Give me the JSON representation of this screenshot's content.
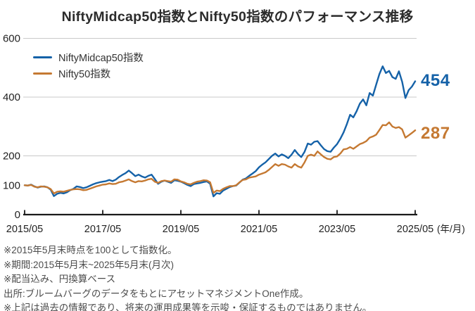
{
  "title": "NiftyMidcap50指数とNifty50指数のパフォーマンス推移",
  "colors": {
    "blue": "#1562a8",
    "orange": "#c57932",
    "grid": "#c9c9c9",
    "axis": "#1a1a1a",
    "axis_text": "#222222",
    "title_text": "#2b2b2b",
    "note_text": "#4c4c4c"
  },
  "chart_data": {
    "type": "line",
    "title": "NiftyMidcap50指数とNifty50指数のパフォーマンス推移",
    "x_unit": "monthly",
    "x_start": "2015/05",
    "x_end": "2025/05",
    "x_tick_labels": [
      "2015/05",
      "2017/05",
      "2019/05",
      "2021/05",
      "2023/05",
      "2025/05"
    ],
    "x_tick_months": [
      0,
      24,
      48,
      72,
      96,
      120
    ],
    "x_axis_suffix": "(年/月)",
    "y_ticks": [
      0,
      100,
      200,
      400,
      600
    ],
    "grid_values": [
      200,
      400,
      600
    ],
    "ylim": [
      0,
      600
    ],
    "legend_position": "top-left",
    "base_note": "2015/05 = 100",
    "series": [
      {
        "id": "niftymidcap50",
        "name": "NiftyMidcap50指数",
        "color": "#1562a8",
        "end_label": "454",
        "values": [
          100,
          99,
          102,
          96,
          92,
          95,
          96,
          93,
          85,
          63,
          71,
          74,
          72,
          76,
          83,
          88,
          96,
          94,
          90,
          93,
          98,
          103,
          107,
          110,
          112,
          114,
          118,
          114,
          119,
          128,
          135,
          141,
          150,
          141,
          131,
          136,
          130,
          126,
          132,
          136,
          121,
          105,
          112,
          116,
          112,
          108,
          117,
          115,
          112,
          107,
          101,
          97,
          104,
          106,
          108,
          111,
          113,
          105,
          62,
          73,
          71,
          82,
          88,
          94,
          97,
          99,
          109,
          119,
          123,
          132,
          140,
          148,
          161,
          170,
          178,
          189,
          200,
          208,
          198,
          205,
          200,
          192,
          204,
          220,
          206,
          196,
          214,
          242,
          238,
          248,
          250,
          236,
          223,
          216,
          214,
          228,
          240,
          258,
          280,
          308,
          340,
          331,
          352,
          378,
          392,
          372,
          414,
          405,
          442,
          478,
          505,
          482,
          489,
          468,
          462,
          488,
          452,
          397,
          424,
          436,
          454
        ]
      },
      {
        "id": "nifty50",
        "name": "Nifty50指数",
        "color": "#c57932",
        "end_label": "287",
        "values": [
          100,
          99,
          101,
          95,
          93,
          96,
          95,
          93,
          87,
          72,
          78,
          79,
          78,
          81,
          84,
          86,
          87,
          86,
          83,
          84,
          88,
          92,
          96,
          99,
          102,
          103,
          106,
          104,
          105,
          110,
          112,
          116,
          120,
          114,
          110,
          114,
          113,
          116,
          120,
          122,
          112,
          108,
          114,
          116,
          114,
          112,
          120,
          119,
          113,
          110,
          105,
          103,
          108,
          112,
          114,
          117,
          116,
          110,
          74,
          82,
          80,
          88,
          93,
          97,
          97,
          100,
          110,
          118,
          120,
          126,
          128,
          130,
          136,
          140,
          144,
          152,
          162,
          172,
          166,
          172,
          170,
          164,
          160,
          172,
          164,
          160,
          178,
          200,
          204,
          200,
          215,
          205,
          196,
          190,
          188,
          196,
          198,
          208,
          222,
          224,
          230,
          224,
          232,
          240,
          244,
          250,
          262,
          266,
          272,
          288,
          305,
          304,
          314,
          300,
          295,
          298,
          290,
          262,
          270,
          278,
          287
        ]
      }
    ]
  },
  "footnotes": [
    "※2015年5月末時点を100として指数化。",
    "※期間:2015年5月末~2025年5月末(月次)",
    "※配当込み、円換算ベース",
    "出所:ブルームバーグのデータをもとにアセットマネジメントOne作成。",
    "※上記は過去の情報であり、将来の運用成果等を示唆・保証するものではありません。"
  ]
}
